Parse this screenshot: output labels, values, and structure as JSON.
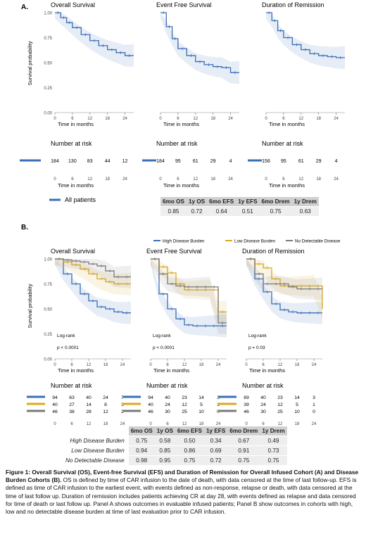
{
  "panelA": {
    "label": "A.",
    "ylabel": "Survival probability",
    "xlabel": "Time in months",
    "yticks": [
      "1.00",
      "0.75",
      "0.50",
      "0.25",
      "0.00"
    ],
    "xticks": [
      "0",
      "6",
      "12",
      "18",
      "24"
    ],
    "risk_title": "Number at risk",
    "legend_label": "All patients",
    "series_color": "#3a6fb5",
    "charts": [
      {
        "title": "Overall Survival"
      },
      {
        "title": "Event Free Survival"
      },
      {
        "title": "Duration of Remission"
      }
    ],
    "risk": [
      [
        "184",
        "130",
        "83",
        "44",
        "12"
      ],
      [
        "184",
        "95",
        "61",
        "29",
        "4"
      ],
      [
        "156",
        "95",
        "61",
        "29",
        "4"
      ]
    ],
    "table": {
      "headers": [
        "6mo OS",
        "1y OS",
        "6mo EFS",
        "1y EFS",
        "6mo Drem",
        "1y Drem"
      ],
      "values": [
        "0.85",
        "0.72",
        "0.64",
        "0.51",
        "0.75",
        "0.63"
      ]
    }
  },
  "panelB": {
    "label": "B.",
    "ylabel": "Survival probability",
    "xlabel": "Time in months",
    "yticks": [
      "1.00",
      "0.75",
      "0.50",
      "0.25",
      "0.00"
    ],
    "xticks": [
      "0",
      "6",
      "12",
      "18",
      "24"
    ],
    "risk_title": "Number at risk",
    "legend": [
      {
        "label": "High Disease Burden",
        "color": "#3a6fb5"
      },
      {
        "label": "Low Disease Burden",
        "color": "#d9a81e"
      },
      {
        "label": "No Detectable Disease",
        "color": "#7a7a7a"
      }
    ],
    "charts": [
      {
        "title": "Overall Survival",
        "test": "Log-rank",
        "p": "p < 0.0001"
      },
      {
        "title": "Event Free Survival",
        "test": "Log-rank",
        "p": "p < 0.0001"
      },
      {
        "title": "Duration of Remission",
        "test": "Log-rank",
        "p": "p = 0.03"
      }
    ],
    "risk": [
      [
        [
          "94",
          "63",
          "40",
          "24",
          "7"
        ],
        [
          "40",
          "27",
          "14",
          "8",
          "3"
        ],
        [
          "46",
          "38",
          "28",
          "12",
          "2"
        ]
      ],
      [
        [
          "94",
          "40",
          "23",
          "14",
          "3"
        ],
        [
          "40",
          "24",
          "12",
          "5",
          "1"
        ],
        [
          "46",
          "30",
          "25",
          "10",
          "0"
        ]
      ],
      [
        [
          "69",
          "40",
          "23",
          "14",
          "3"
        ],
        [
          "39",
          "24",
          "12",
          "5",
          "1"
        ],
        [
          "46",
          "30",
          "25",
          "10",
          "0"
        ]
      ]
    ],
    "table": {
      "headers": [
        "6mo OS",
        "1y OS",
        "6mo EFS",
        "1y EFS",
        "6mo Drem",
        "1y Drem"
      ],
      "rows": [
        {
          "label": "High Disease Burden",
          "values": [
            "0.75",
            "0.58",
            "0.50",
            "0.34",
            "0.67",
            "0.49"
          ]
        },
        {
          "label": "Low Disease Burden",
          "values": [
            "0.94",
            "0.85",
            "0.86",
            "0.69",
            "0.91",
            "0.73"
          ]
        },
        {
          "label": "No Detectable Disease",
          "values": [
            "0.98",
            "0.95",
            "0.75",
            "0.72",
            "0.75",
            "0.75"
          ]
        }
      ]
    }
  },
  "chart_data": [
    {
      "type": "line",
      "title": "Overall Survival",
      "xlabel": "Time in months",
      "ylabel": "Survival probability",
      "xlim": [
        0,
        27
      ],
      "ylim": [
        0,
        1
      ],
      "series": [
        {
          "name": "All patients",
          "x": [
            0,
            2,
            4,
            6,
            9,
            12,
            15,
            18,
            21,
            24,
            27
          ],
          "y": [
            1.0,
            0.95,
            0.9,
            0.85,
            0.78,
            0.72,
            0.67,
            0.63,
            0.6,
            0.57,
            0.57
          ]
        }
      ]
    },
    {
      "type": "line",
      "title": "Event Free Survival",
      "xlabel": "Time in months",
      "ylabel": "Survival probability",
      "xlim": [
        0,
        27
      ],
      "ylim": [
        0,
        1
      ],
      "series": [
        {
          "name": "All patients",
          "x": [
            0,
            2,
            4,
            6,
            9,
            12,
            15,
            18,
            21,
            24,
            27
          ],
          "y": [
            1.0,
            0.86,
            0.74,
            0.64,
            0.57,
            0.51,
            0.48,
            0.46,
            0.45,
            0.4,
            0.4
          ]
        }
      ]
    },
    {
      "type": "line",
      "title": "Duration of Remission",
      "xlabel": "Time in months",
      "ylabel": "Survival probability",
      "xlim": [
        0,
        27
      ],
      "ylim": [
        0,
        1
      ],
      "series": [
        {
          "name": "All patients",
          "x": [
            0,
            2,
            4,
            6,
            9,
            12,
            15,
            18,
            21,
            24,
            27
          ],
          "y": [
            1.0,
            0.92,
            0.82,
            0.75,
            0.68,
            0.63,
            0.59,
            0.57,
            0.56,
            0.55,
            0.55
          ]
        }
      ]
    },
    {
      "type": "line",
      "title": "Overall Survival",
      "xlabel": "Time in months",
      "ylabel": "Survival probability",
      "xlim": [
        0,
        27
      ],
      "ylim": [
        0,
        1
      ],
      "series": [
        {
          "name": "High Disease Burden",
          "x": [
            0,
            3,
            6,
            9,
            12,
            15,
            18,
            21,
            24,
            27
          ],
          "y": [
            1.0,
            0.85,
            0.75,
            0.65,
            0.58,
            0.52,
            0.5,
            0.47,
            0.46,
            0.46
          ]
        },
        {
          "name": "Low Disease Burden",
          "x": [
            0,
            3,
            6,
            9,
            12,
            15,
            18,
            21,
            24,
            27
          ],
          "y": [
            1.0,
            0.97,
            0.94,
            0.9,
            0.85,
            0.8,
            0.77,
            0.75,
            0.75,
            0.75
          ]
        },
        {
          "name": "No Detectable Disease",
          "x": [
            0,
            3,
            6,
            9,
            12,
            15,
            18,
            21,
            24,
            27
          ],
          "y": [
            1.0,
            0.99,
            0.98,
            0.97,
            0.95,
            0.93,
            0.88,
            0.82,
            0.82,
            0.82
          ]
        }
      ]
    },
    {
      "type": "line",
      "title": "Event Free Survival",
      "xlabel": "Time in months",
      "ylabel": "Survival probability",
      "xlim": [
        0,
        27
      ],
      "ylim": [
        0,
        1
      ],
      "series": [
        {
          "name": "High Disease Burden",
          "x": [
            0,
            3,
            6,
            9,
            12,
            15,
            18,
            21,
            24,
            27
          ],
          "y": [
            1.0,
            0.65,
            0.5,
            0.4,
            0.34,
            0.33,
            0.33,
            0.33,
            0.33,
            0.33
          ]
        },
        {
          "name": "Low Disease Burden",
          "x": [
            0,
            3,
            6,
            9,
            12,
            15,
            18,
            21,
            24,
            27
          ],
          "y": [
            1.0,
            0.92,
            0.86,
            0.75,
            0.69,
            0.69,
            0.69,
            0.69,
            0.47,
            0.47
          ]
        },
        {
          "name": "No Detectable Disease",
          "x": [
            0,
            3,
            6,
            9,
            12,
            15,
            18,
            21,
            24,
            27
          ],
          "y": [
            1.0,
            0.85,
            0.75,
            0.73,
            0.72,
            0.72,
            0.72,
            0.72,
            0.36,
            0.36
          ]
        }
      ]
    },
    {
      "type": "line",
      "title": "Duration of Remission",
      "xlabel": "Time in months",
      "ylabel": "Survival probability",
      "xlim": [
        0,
        27
      ],
      "ylim": [
        0,
        1
      ],
      "series": [
        {
          "name": "High Disease Burden",
          "x": [
            0,
            3,
            6,
            9,
            12,
            15,
            18,
            21,
            24,
            27
          ],
          "y": [
            1.0,
            0.8,
            0.67,
            0.55,
            0.49,
            0.47,
            0.46,
            0.46,
            0.46,
            0.46
          ]
        },
        {
          "name": "Low Disease Burden",
          "x": [
            0,
            3,
            6,
            9,
            12,
            15,
            18,
            21,
            24,
            27
          ],
          "y": [
            1.0,
            0.95,
            0.91,
            0.8,
            0.73,
            0.73,
            0.73,
            0.73,
            0.73,
            0.5
          ]
        },
        {
          "name": "No Detectable Disease",
          "x": [
            0,
            3,
            6,
            9,
            12,
            15,
            18,
            21,
            24,
            27
          ],
          "y": [
            1.0,
            0.85,
            0.75,
            0.75,
            0.75,
            0.72,
            0.7,
            0.7,
            0.7,
            0.7
          ]
        }
      ]
    }
  ],
  "caption": {
    "bold": "Figure 1: Overall Survival (OS), Event-free Survival (EFS) and Duration of Remission for Overall Infused Cohort (A) and Disease Burden Cohorts (B).",
    "body": " OS is defined by time of CAR infusion to the date of death, with data censored at the time of last follow-up. EFS is defined as time of CAR infusion to the earliest event, with events defined as non-response, relapse or death, with data censored at the time of last follow up. Duration of remission includes patients achieving CR at day 28, with events defined as relapse and data censored for  time of death or last follow up. Panel A shows outcomes in evaluable infused patients; Panel B show outcomes in cohorts with high, low and no detectable disease burden at time of last evaluation prior to CAR infusion."
  }
}
